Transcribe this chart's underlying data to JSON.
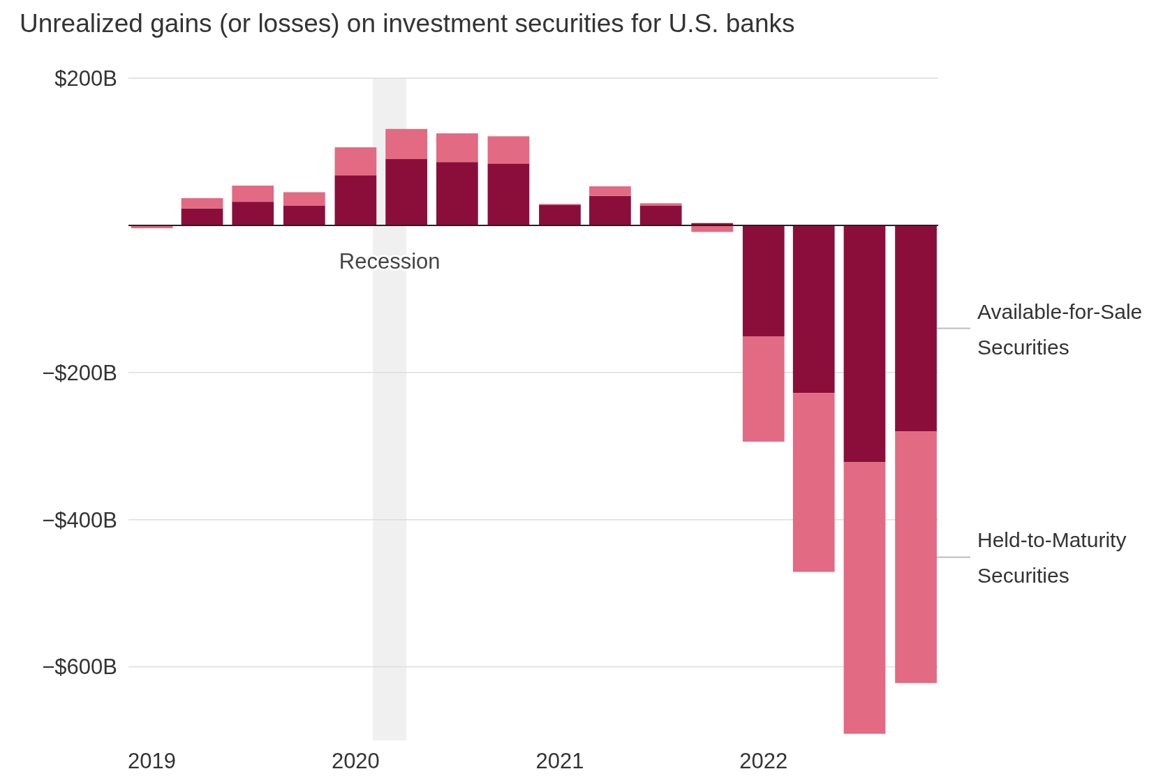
{
  "chart_data": {
    "type": "bar",
    "title": "Unrealized gains (or losses) on investment securities for U.S. banks",
    "stacked": true,
    "x": [
      "2019-01",
      "2019-04",
      "2019-07",
      "2019-10",
      "2020-01",
      "2020-04",
      "2020-07",
      "2020-10",
      "2021-01",
      "2021-04",
      "2021-07",
      "2021-10",
      "2022-01",
      "2022-04",
      "2022-07",
      "2022-10"
    ],
    "series": [
      {
        "name": "Available-for-Sale Securities",
        "color": "#8b0e3a",
        "values": [
          -1,
          23,
          32,
          27,
          68,
          90,
          86,
          84,
          28,
          40,
          27,
          3,
          -151,
          -228,
          -322,
          -280
        ]
      },
      {
        "name": "Held-to-Maturity Securities",
        "color": "#e26a82",
        "values": [
          -3,
          14,
          22,
          18,
          38,
          41,
          39,
          37,
          1,
          13,
          3,
          -9,
          -143,
          -243,
          -369,
          -342
        ]
      }
    ],
    "xlim": [
      "2018-11-20",
      "2022-11-10"
    ],
    "xticks": [
      "2019",
      "2020",
      "2021",
      "2022"
    ],
    "ylim": [
      -700,
      200
    ],
    "yticks": [
      {
        "value": 200,
        "label": "$200B"
      },
      {
        "value": -200,
        "label": "−$200B"
      },
      {
        "value": -400,
        "label": "−$400B"
      },
      {
        "value": -600,
        "label": "−$600B"
      }
    ],
    "grid": "y",
    "bands": [
      {
        "axis": "x",
        "from": "2020-02",
        "to": "2020-04",
        "label": "Recession",
        "color": "#f0f0f0"
      }
    ]
  }
}
